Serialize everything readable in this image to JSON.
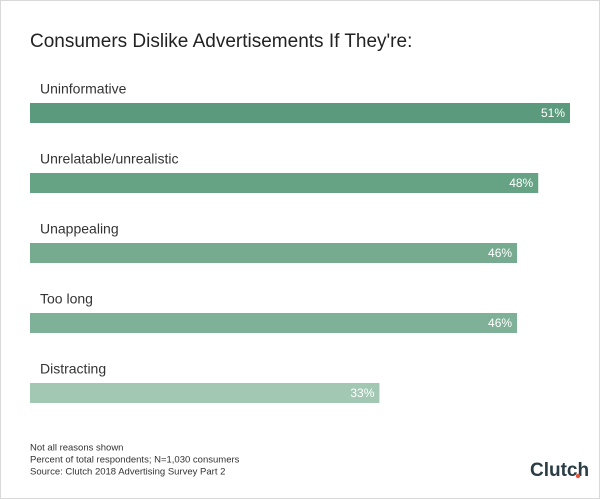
{
  "chart_data": {
    "type": "bar",
    "orientation": "horizontal",
    "title": "Consumers Dislike Advertisements If They're:",
    "categories": [
      "Uninformative",
      "Unrelatable/unrealistic",
      "Unappealing",
      "Too long",
      "Distracting"
    ],
    "values": [
      51,
      48,
      46,
      46,
      33
    ],
    "value_labels": [
      "51%",
      "48%",
      "46%",
      "46%",
      "33%"
    ],
    "colors": [
      "#5b9a7c",
      "#66a284",
      "#76ab90",
      "#7fb198",
      "#a2c8b3"
    ],
    "notes": [
      "Not all reasons shown",
      "Percent of total respondents; N=1,030 consumers",
      "Source: Clutch 2018 Advertising Survey Part 2"
    ],
    "brand": "Clutch"
  }
}
